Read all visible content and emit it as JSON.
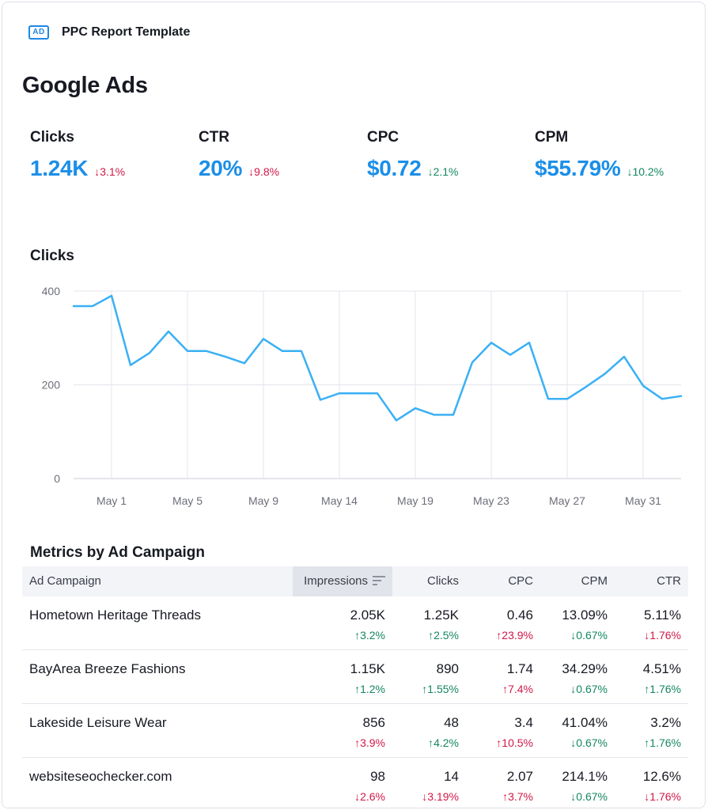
{
  "header": {
    "icon_text": "AD",
    "title": "PPC Report Template"
  },
  "page_title": "Google Ads",
  "kpis": [
    {
      "label": "Clicks",
      "value": "1.24K",
      "delta": "↓3.1%",
      "trend": "neg"
    },
    {
      "label": "CTR",
      "value": "20%",
      "delta": "↓9.8%",
      "trend": "neg"
    },
    {
      "label": "CPC",
      "value": "$0.72",
      "delta": "↓2.1%",
      "trend": "pos"
    },
    {
      "label": "CPM",
      "value": "$55.79%",
      "delta": "↓10.2%",
      "trend": "pos"
    }
  ],
  "colors": {
    "accent": "#1b8fe8",
    "line": "#3ab0f5",
    "negative": "#d1184a",
    "positive": "#14875f"
  },
  "chart_title": "Clicks",
  "chart_data": {
    "type": "line",
    "title": "Clicks",
    "xlabel": "",
    "ylabel": "",
    "ylim": [
      0,
      400
    ],
    "yticks": [
      "0",
      "200",
      "400"
    ],
    "grid": true,
    "x": [
      0,
      1,
      2,
      3,
      4,
      5,
      6,
      7,
      8,
      9,
      10,
      11,
      12,
      13,
      14,
      15,
      16,
      17,
      18,
      19,
      20,
      21,
      22,
      23,
      24,
      25,
      26,
      27,
      28,
      29,
      30,
      31,
      32
    ],
    "x_tick_labels": [
      "May 1",
      "May 5",
      "May 9",
      "May 14",
      "May 19",
      "May 23",
      "May 27",
      "May 31"
    ],
    "x_tick_index": [
      2,
      6,
      10,
      14,
      18,
      22,
      26,
      30
    ],
    "series": [
      {
        "name": "Clicks",
        "values": [
          368,
          368,
          390,
          242,
          268,
          314,
          272,
          272,
          260,
          246,
          298,
          272,
          272,
          168,
          182,
          182,
          182,
          124,
          150,
          136,
          136,
          248,
          290,
          264,
          290,
          170,
          170,
          196,
          224,
          260,
          198,
          170,
          176
        ]
      }
    ]
  },
  "table": {
    "title": "Metrics by Ad Campaign",
    "columns": [
      "Ad Campaign",
      "Impressions",
      "Clicks",
      "CPC",
      "CPM",
      "CTR"
    ],
    "sorted_column": "Impressions",
    "rows": [
      {
        "name": "Hometown Heritage Threads",
        "cells": [
          {
            "value": "2.05K",
            "delta": "↑3.2%",
            "trend": "pos"
          },
          {
            "value": "1.25K",
            "delta": "↑2.5%",
            "trend": "pos"
          },
          {
            "value": "0.46",
            "delta": "↑23.9%",
            "trend": "neg"
          },
          {
            "value": "13.09%",
            "delta": "↓0.67%",
            "trend": "pos"
          },
          {
            "value": "5.11%",
            "delta": "↓1.76%",
            "trend": "neg"
          }
        ]
      },
      {
        "name": "BayArea Breeze Fashions",
        "cells": [
          {
            "value": "1.15K",
            "delta": "↑1.2%",
            "trend": "pos"
          },
          {
            "value": "890",
            "delta": "↑1.55%",
            "trend": "pos"
          },
          {
            "value": "1.74",
            "delta": "↑7.4%",
            "trend": "neg"
          },
          {
            "value": "34.29%",
            "delta": "↓0.67%",
            "trend": "pos"
          },
          {
            "value": "4.51%",
            "delta": "↑1.76%",
            "trend": "pos"
          }
        ]
      },
      {
        "name": "Lakeside Leisure Wear",
        "cells": [
          {
            "value": "856",
            "delta": "↑3.9%",
            "trend": "neg"
          },
          {
            "value": "48",
            "delta": "↑4.2%",
            "trend": "pos"
          },
          {
            "value": "3.4",
            "delta": "↑10.5%",
            "trend": "neg"
          },
          {
            "value": "41.04%",
            "delta": "↓0.67%",
            "trend": "pos"
          },
          {
            "value": "3.2%",
            "delta": "↑1.76%",
            "trend": "pos"
          }
        ]
      },
      {
        "name": "websiteseochecker.com",
        "cells": [
          {
            "value": "98",
            "delta": "↓2.6%",
            "trend": "neg"
          },
          {
            "value": "14",
            "delta": "↓3.19%",
            "trend": "neg"
          },
          {
            "value": "2.07",
            "delta": "↑3.7%",
            "trend": "neg"
          },
          {
            "value": "214.1%",
            "delta": "↓0.67%",
            "trend": "pos"
          },
          {
            "value": "12.6%",
            "delta": "↓1.76%",
            "trend": "neg"
          }
        ]
      }
    ]
  }
}
